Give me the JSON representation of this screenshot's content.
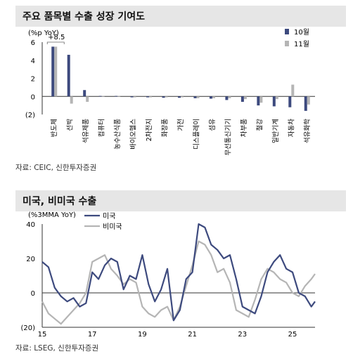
{
  "panels": [
    {
      "title": "주요 품목별 수출 성장 기여도",
      "source": "자료: CEIC, 신한투자증권"
    },
    {
      "title": "미국, 비미국 수출",
      "source": "자료: LSEG, 신한투자증권"
    }
  ],
  "chart_data": [
    {
      "type": "bar",
      "ylabel": "(%p YoY)",
      "ylim": [
        -2,
        6
      ],
      "yticks": [
        "6",
        "4",
        "2",
        "0",
        "(2)"
      ],
      "annotation": "+8.5",
      "legend_position": "top-right",
      "categories": [
        "반도체",
        "선박",
        "석유제품",
        "컴퓨터",
        "농수산식품",
        "바이오헬스",
        "2차전지",
        "화장품",
        "가전",
        "디스플레이",
        "섬유",
        "무선통신기기",
        "차부품",
        "철강",
        "일반기계",
        "자동차",
        "석유화학"
      ],
      "series": [
        {
          "name": "10월",
          "color": "#3d4a7e",
          "values": [
            5.5,
            4.6,
            0.7,
            0.05,
            0.05,
            -0.1,
            -0.1,
            -0.15,
            -0.15,
            -0.2,
            -0.25,
            -0.4,
            -0.6,
            -1.0,
            -1.1,
            -1.2,
            -1.6
          ]
        },
        {
          "name": "11월",
          "color": "#b5b5b5",
          "values": [
            5.5,
            -0.8,
            -0.6,
            0.05,
            0.05,
            -0.1,
            -0.1,
            -0.1,
            -0.1,
            -0.2,
            -0.2,
            -0.2,
            -0.3,
            -0.7,
            -0.3,
            1.3,
            -0.9
          ]
        }
      ]
    },
    {
      "type": "line",
      "ylabel": "(%3MMA YoY)",
      "ylim": [
        -20,
        40
      ],
      "yticks": [
        "40",
        "20",
        "0",
        "(20)"
      ],
      "xticks": [
        "15",
        "17",
        "19",
        "21",
        "23",
        "25"
      ],
      "xlim": [
        2015.0,
        2025.9
      ],
      "legend_position": "top-left",
      "series": [
        {
          "name": "미국",
          "color": "#3d4a7e",
          "x": [
            2015.0,
            2015.25,
            2015.5,
            2015.75,
            2016.0,
            2016.25,
            2016.5,
            2016.75,
            2017.0,
            2017.25,
            2017.5,
            2017.75,
            2018.0,
            2018.25,
            2018.5,
            2018.75,
            2019.0,
            2019.25,
            2019.5,
            2019.75,
            2020.0,
            2020.25,
            2020.5,
            2020.75,
            2021.0,
            2021.25,
            2021.5,
            2021.75,
            2022.0,
            2022.25,
            2022.5,
            2022.75,
            2023.0,
            2023.25,
            2023.5,
            2023.75,
            2024.0,
            2024.25,
            2024.5,
            2024.75,
            2025.0,
            2025.25,
            2025.5,
            2025.75,
            2025.9
          ],
          "y": [
            18,
            15,
            3,
            -2,
            -5,
            -3,
            -8,
            -6,
            12,
            8,
            16,
            20,
            18,
            2,
            10,
            8,
            22,
            5,
            -5,
            2,
            14,
            -16,
            -10,
            8,
            12,
            40,
            38,
            28,
            25,
            20,
            22,
            8,
            -8,
            -10,
            -12,
            -2,
            12,
            18,
            22,
            14,
            12,
            0,
            -2,
            -8,
            -5
          ]
        },
        {
          "name": "비미국",
          "color": "#b5b5b5",
          "x": [
            2015.0,
            2015.25,
            2015.5,
            2015.75,
            2016.0,
            2016.25,
            2016.5,
            2016.75,
            2017.0,
            2017.25,
            2017.5,
            2017.75,
            2018.0,
            2018.25,
            2018.5,
            2018.75,
            2019.0,
            2019.25,
            2019.5,
            2019.75,
            2020.0,
            2020.25,
            2020.5,
            2020.75,
            2021.0,
            2021.25,
            2021.5,
            2021.75,
            2022.0,
            2022.25,
            2022.5,
            2022.75,
            2023.0,
            2023.25,
            2023.5,
            2023.75,
            2024.0,
            2024.25,
            2024.5,
            2024.75,
            2025.0,
            2025.25,
            2025.5,
            2025.75,
            2025.9
          ],
          "y": [
            -5,
            -12,
            -15,
            -18,
            -14,
            -10,
            -6,
            0,
            18,
            20,
            22,
            14,
            10,
            5,
            8,
            6,
            -8,
            -12,
            -14,
            -10,
            -8,
            -16,
            -8,
            4,
            16,
            30,
            28,
            22,
            12,
            14,
            6,
            -10,
            -12,
            -14,
            -4,
            8,
            14,
            12,
            8,
            6,
            0,
            -2,
            4,
            8,
            11
          ]
        }
      ]
    }
  ]
}
